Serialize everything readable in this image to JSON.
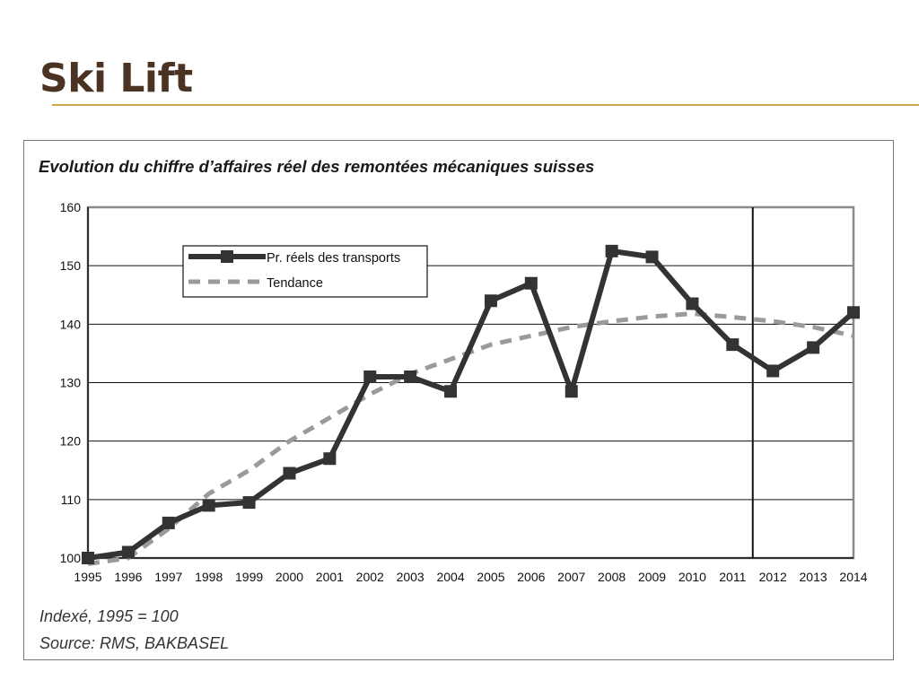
{
  "slide": {
    "title": "Ski Lift"
  },
  "colors": {
    "title": "#4a3323",
    "rule": "#d4a545",
    "actual": "#333333",
    "trend": "#9a9a9a"
  },
  "chart_data": {
    "type": "line",
    "title": "Evolution du chiffre d’affaires réel des remontées mécaniques suisses",
    "xlabel": "",
    "ylabel": "",
    "categories": [
      "1995",
      "1996",
      "1997",
      "1998",
      "1999",
      "2000",
      "2001",
      "2002",
      "2003",
      "2004",
      "2005",
      "2006",
      "2007",
      "2008",
      "2009",
      "2010",
      "2011",
      "2012",
      "2013",
      "2014"
    ],
    "ylim": [
      100,
      160
    ],
    "yticks": [
      100,
      110,
      120,
      130,
      140,
      150,
      160
    ],
    "grid": "horizontal",
    "legend_position": "top-left",
    "vertical_marker_after": "2011",
    "series": [
      {
        "name": "Pr. réels des transports",
        "style": "solid-markers",
        "values": [
          100,
          101,
          106,
          109,
          109.5,
          114.5,
          117,
          131,
          131,
          128.5,
          144,
          147,
          128.5,
          152.5,
          151.5,
          143.5,
          136.5,
          132,
          136,
          142
        ]
      },
      {
        "name": "Tendance",
        "style": "dashed",
        "values": [
          99,
          100,
          105,
          111,
          115,
          120,
          124,
          128,
          131.5,
          134,
          136.5,
          138,
          139.5,
          140.5,
          141.3,
          141.8,
          141.2,
          140.5,
          139.5,
          138
        ]
      }
    ],
    "annotations": [
      "Indexé, 1995 = 100",
      "Source: RMS, BAKBASEL"
    ]
  }
}
